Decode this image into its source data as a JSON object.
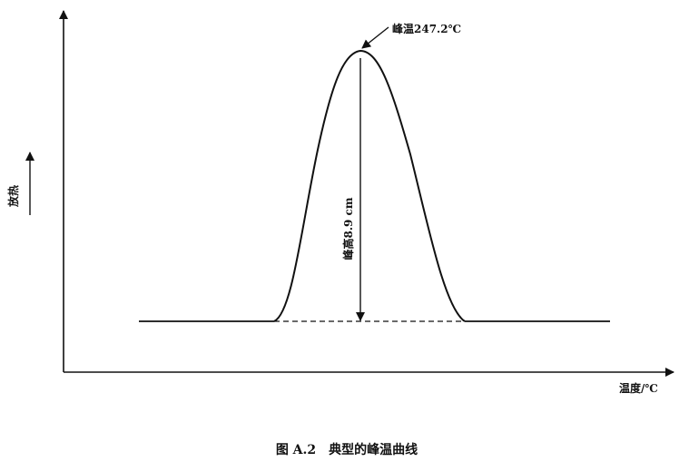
{
  "figure": {
    "peak_label": "峰温247.2℃",
    "height_label": "峰高8.9 cm",
    "y_axis_label": "放热",
    "x_axis_label": "温度/℃",
    "caption": "图 A.2　典型的峰温曲线"
  }
}
